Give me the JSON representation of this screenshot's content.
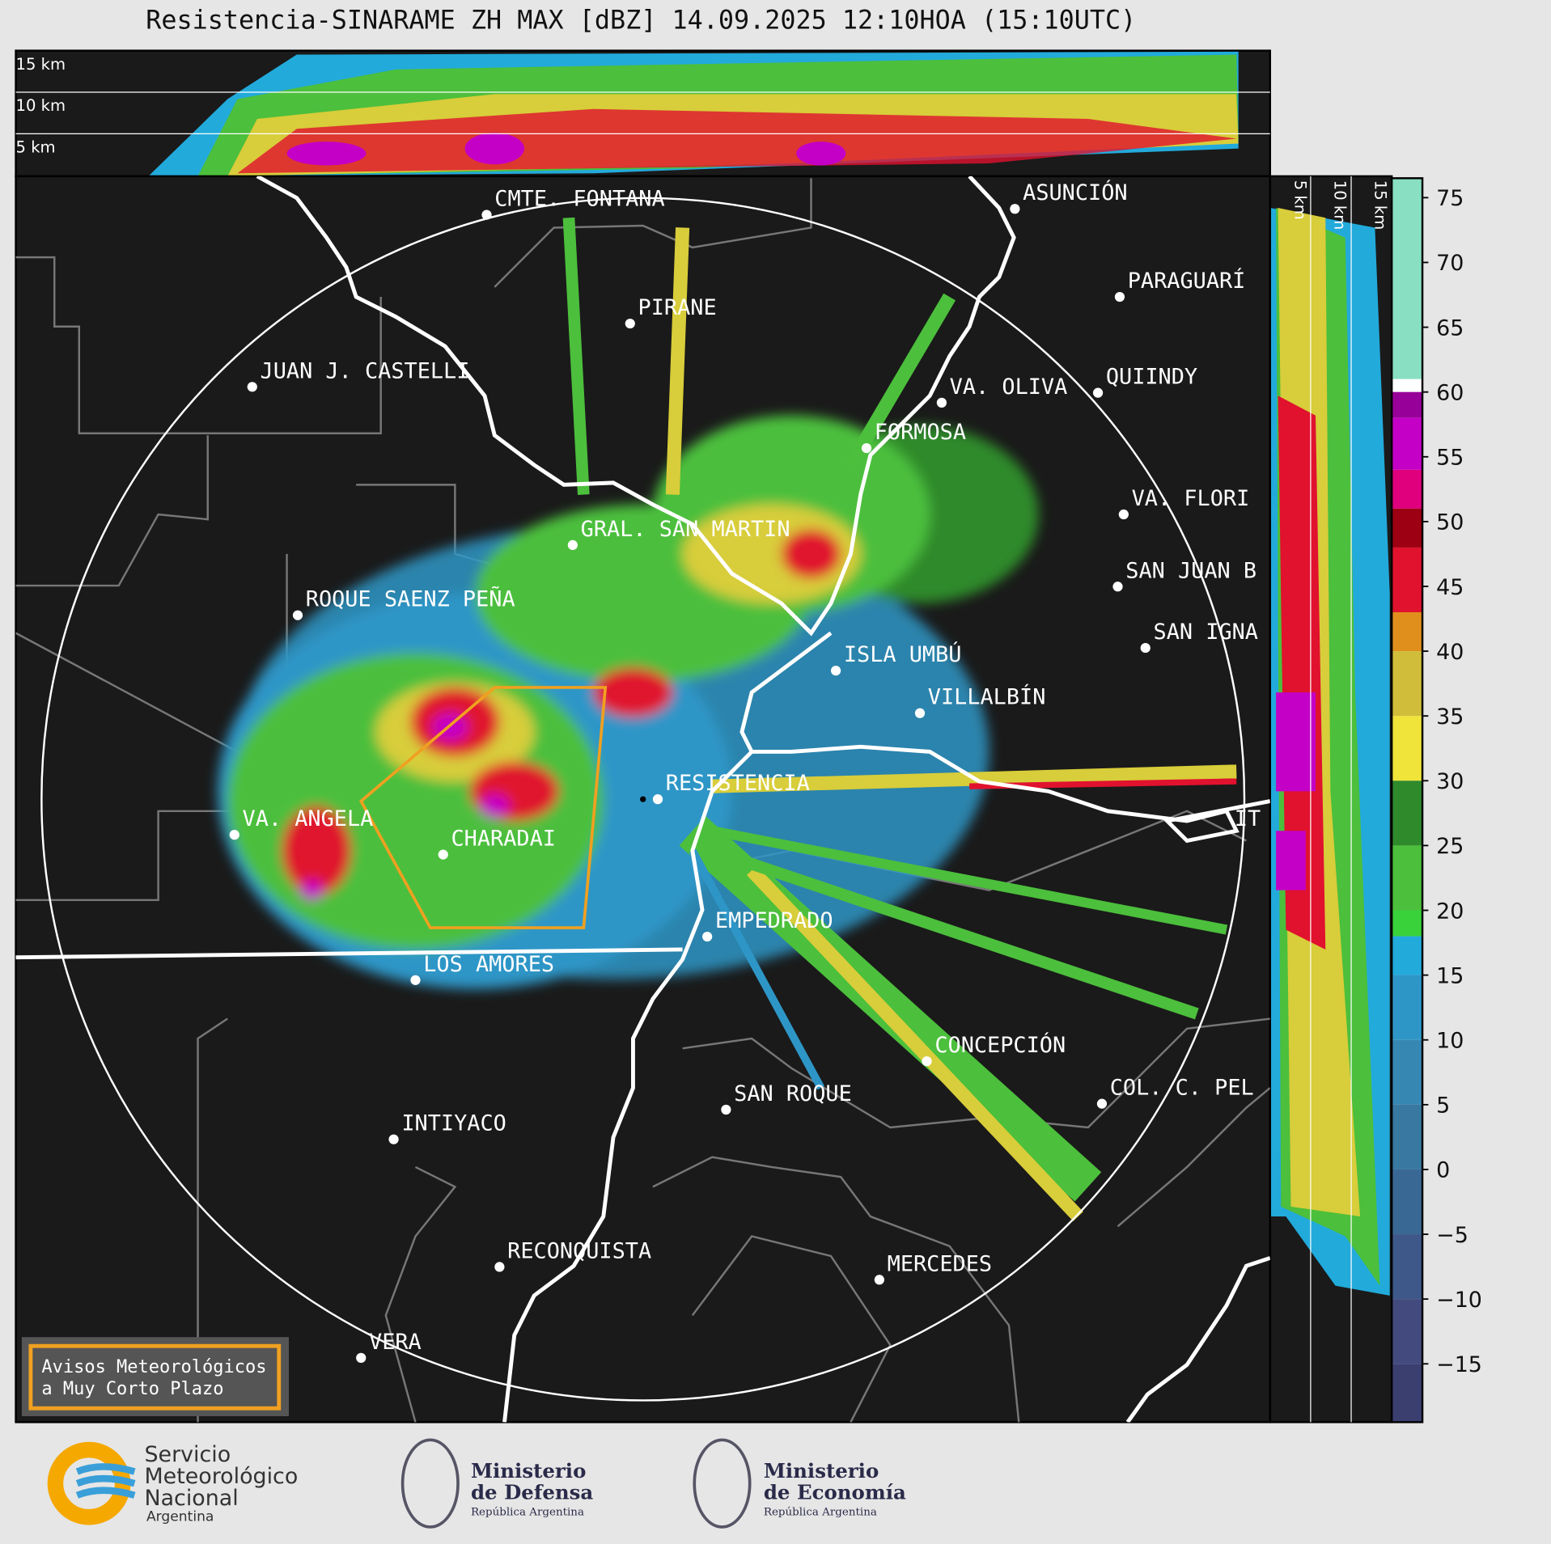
{
  "title": "Resistencia-SINARAME ZH MAX [dBZ] 14.09.2025 12:10HOA (15:10UTC)",
  "height_labels": [
    "15 km",
    "10 km",
    "5 km"
  ],
  "colorbar": {
    "bounds": [
      -19.5,
      -15,
      -10,
      -5,
      0,
      5,
      10,
      15,
      18,
      20,
      25,
      30,
      35,
      40,
      43,
      48,
      51,
      54,
      58,
      60,
      61,
      76.5
    ],
    "colors": [
      "#3b3f70",
      "#434a7e",
      "#3e5889",
      "#3a6895",
      "#3878a1",
      "#3787b3",
      "#2e96c7",
      "#22aadb",
      "#39d23a",
      "#4cbf3c",
      "#2f8a2c",
      "#f0e43a",
      "#d0bd3a",
      "#e08f1c",
      "#e0122e",
      "#9c0012",
      "#e0007e",
      "#c400c6",
      "#98009a",
      "#ffffff",
      "#88dfc2"
    ],
    "ticks": [
      75,
      70,
      65,
      60,
      55,
      50,
      45,
      40,
      35,
      30,
      25,
      20,
      15,
      10,
      5,
      0,
      {
        "value": -5,
        "label": "−5"
      },
      {
        "value": -10,
        "label": "−10"
      },
      {
        "value": -15,
        "label": "−15"
      }
    ]
  },
  "cities": [
    "CMTE. FONTANA",
    "PIRANE",
    "JUAN J. CASTELLI",
    "ASUNCIÓN",
    "PARAGUARÍ",
    "QUIINDY",
    "VA. OLIVA",
    "FORMOSA",
    "VA. FLORI",
    "GRAL. SAN MARTIN",
    "SAN JUAN B",
    "ROQUE SAENZ PEÑA",
    "SAN IGNA",
    "ISLA UMBÚ",
    "VILLALBÍN",
    "RESISTENCIA",
    "VA. ANGELA",
    "IT",
    "CHARADAI",
    "EMPEDRADO",
    "LOS AMORES",
    "CONCEPCIÓN",
    "COL. C. PEL",
    "SAN ROQUE",
    "INTIYACO",
    "RECONQUISTA",
    "MERCEDES",
    "VERA"
  ],
  "warning_box": [
    "Avisos Meteorológicos",
    "a Muy Corto Plazo"
  ],
  "logos": {
    "smn": [
      "Servicio",
      "Meteorológico",
      "Nacional",
      "Argentina"
    ],
    "defensa": [
      "Ministerio",
      "de Defensa",
      "República Argentina"
    ],
    "economia": [
      "Ministerio",
      "de Economía",
      "República Argentina"
    ]
  }
}
